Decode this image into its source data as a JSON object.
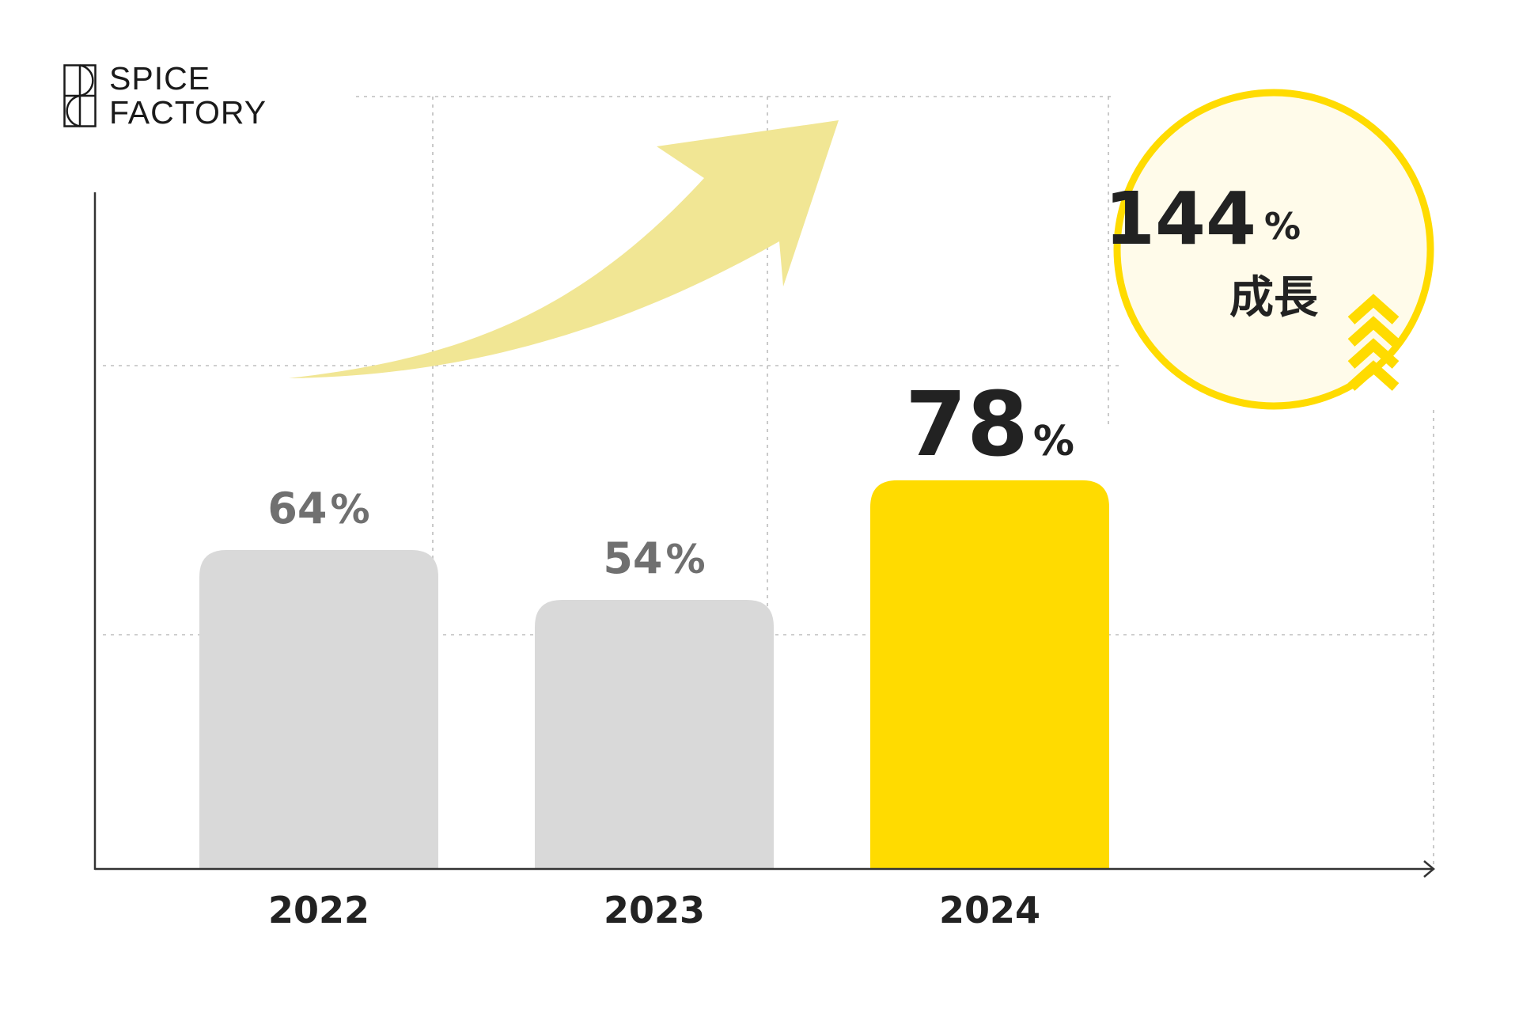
{
  "brand": {
    "line1": "SPICE",
    "line2": "FACTORY"
  },
  "colors": {
    "highlight": "#FFDB00",
    "muted_bar": "#D9D9D9",
    "arrow": "#F1E694",
    "badge_fill": "#FFFBEA",
    "text_dark": "#222222",
    "text_muted": "#707070"
  },
  "badge": {
    "value": "144",
    "unit": "%",
    "label": "成長"
  },
  "chart_data": {
    "type": "bar",
    "categories": [
      "2022",
      "2023",
      "2024"
    ],
    "values": [
      64,
      54,
      78
    ],
    "unit": "%",
    "highlight_index": 2,
    "title": "",
    "xlabel": "",
    "ylabel": "",
    "ylim": [
      0,
      100
    ],
    "grid": true
  }
}
